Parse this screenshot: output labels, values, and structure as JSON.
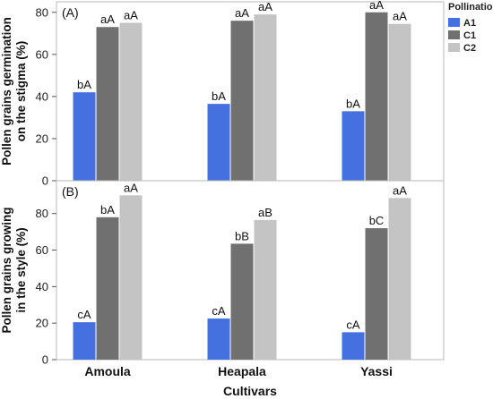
{
  "chart_data": {
    "type": "bar",
    "xlabel": "Cultivars",
    "categories": [
      "Amoula",
      "Heapala",
      "Yassi"
    ],
    "legend": {
      "title": "Pollination",
      "placement": "right",
      "entries": [
        {
          "name": "A1",
          "color": "#4470e0"
        },
        {
          "name": "C1",
          "color": "#707070"
        },
        {
          "name": "C2",
          "color": "#c4c4c4"
        }
      ]
    },
    "panels": [
      {
        "panel_label": "(A)",
        "ylabel_lines": [
          "Pollen grains germination",
          "on the stigma (%)"
        ],
        "ylim": [
          0,
          85
        ],
        "yticks": [
          0,
          20,
          40,
          60,
          80
        ],
        "series": [
          {
            "name": "A1",
            "values": [
              42,
              36.5,
              33
            ],
            "labels": [
              "bA",
              "bA",
              "bA"
            ]
          },
          {
            "name": "C1",
            "values": [
              73,
              76,
              80
            ],
            "labels": [
              "aA",
              "aA",
              "aA"
            ]
          },
          {
            "name": "C2",
            "values": [
              75,
              79,
              74.5
            ],
            "labels": [
              "aA",
              "aA",
              "aA"
            ]
          }
        ]
      },
      {
        "panel_label": "(B)",
        "ylabel_lines": [
          "Pollen grains growing",
          "in the style (%)"
        ],
        "ylim": [
          0,
          98
        ],
        "yticks": [
          0,
          20,
          40,
          60,
          80
        ],
        "series": [
          {
            "name": "A1",
            "values": [
              20.5,
              22.5,
              15
            ],
            "labels": [
              "cA",
              "cA",
              "cA"
            ]
          },
          {
            "name": "C1",
            "values": [
              78,
              63.5,
              72
            ],
            "labels": [
              "bA",
              "bB",
              "bC"
            ]
          },
          {
            "name": "C2",
            "values": [
              90,
              76.5,
              88.5
            ],
            "labels": [
              "aA",
              "aB",
              "aA"
            ]
          }
        ]
      }
    ]
  }
}
